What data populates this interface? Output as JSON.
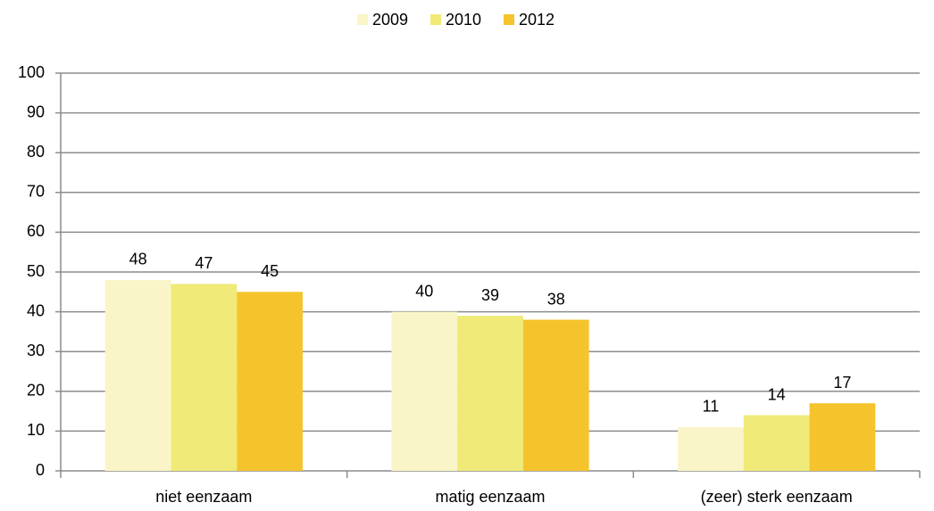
{
  "chart_data": {
    "type": "bar",
    "categories": [
      "niet eenzaam",
      "matig eenzaam",
      "(zeer) sterk eenzaam"
    ],
    "series": [
      {
        "name": "2009",
        "color": "#faf5c8",
        "values": [
          48,
          40,
          11
        ]
      },
      {
        "name": "2010",
        "color": "#f0ea78",
        "values": [
          47,
          39,
          14
        ]
      },
      {
        "name": "2012",
        "color": "#f5c42c",
        "values": [
          45,
          38,
          17
        ]
      }
    ],
    "ylim": [
      0,
      100
    ],
    "yticks": [
      0,
      10,
      20,
      30,
      40,
      50,
      60,
      70,
      80,
      90,
      100
    ],
    "grid": true,
    "legend": "top"
  }
}
